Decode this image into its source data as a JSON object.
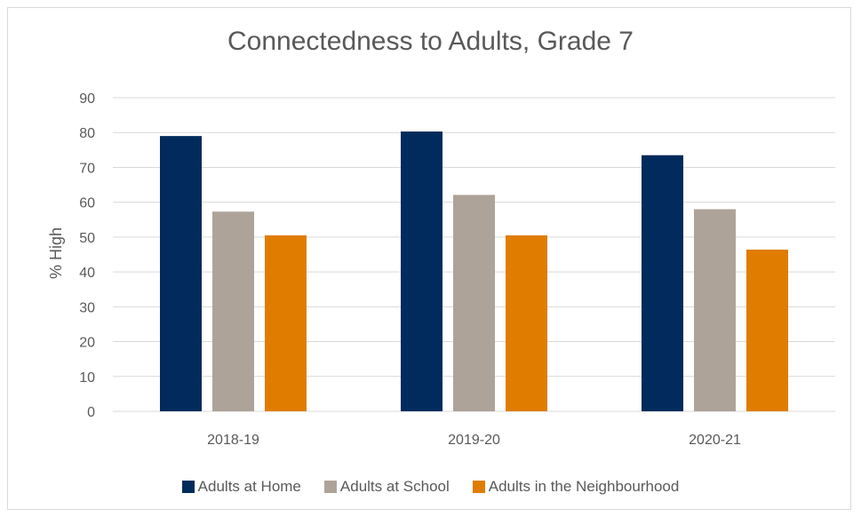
{
  "chart_data": {
    "type": "bar",
    "title": "Connectedness to Adults, Grade 7",
    "xlabel": "",
    "ylabel": "% High",
    "ylim": [
      0,
      90
    ],
    "yticks": [
      0,
      10,
      20,
      30,
      40,
      50,
      60,
      70,
      80,
      90
    ],
    "categories": [
      "2018-19",
      "2019-20",
      "2020-21"
    ],
    "series": [
      {
        "name": "Adults at Home",
        "color": "#002b5c",
        "values": [
          79,
          80.3,
          73.5
        ]
      },
      {
        "name": "Adults at School",
        "color": "#aea399",
        "values": [
          57.3,
          62.1,
          58
        ]
      },
      {
        "name": "Adults in the Neighbourhood",
        "color": "#e07d00",
        "values": [
          50.5,
          50.5,
          46.4
        ]
      }
    ],
    "grid": true,
    "legend_position": "bottom"
  }
}
